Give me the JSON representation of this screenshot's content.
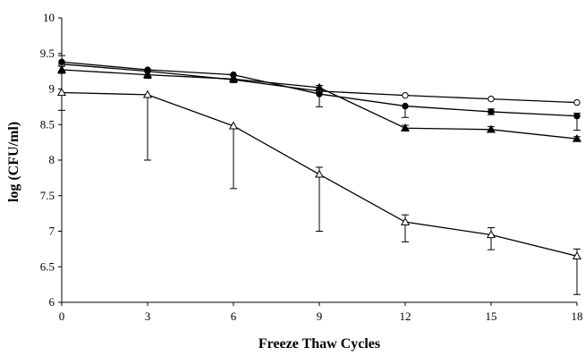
{
  "chart_data": {
    "type": "line",
    "title": "",
    "xlabel": "Freeze Thaw Cycles",
    "ylabel": "log (CFU/ml)",
    "x": [
      0,
      3,
      6,
      9,
      12,
      15,
      18
    ],
    "xticks": [
      "0",
      "3",
      "6",
      "9",
      "12",
      "15",
      "18"
    ],
    "yticks": [
      "6",
      "6.5",
      "7",
      "7.5",
      "8",
      "8.5",
      "9",
      "9.5",
      "10"
    ],
    "xlim": [
      0,
      18
    ],
    "ylim": [
      6,
      10
    ],
    "grid": false,
    "legend": "none",
    "series": [
      {
        "marker": "open-circle",
        "values": [
          9.35,
          9.25,
          9.13,
          8.97,
          8.91,
          8.86,
          8.81
        ],
        "err_upper": [
          0,
          0,
          0,
          0,
          0,
          0,
          0
        ],
        "err_lower": [
          0,
          0,
          0,
          0,
          0,
          0,
          0
        ]
      },
      {
        "marker": "filled-circle",
        "values": [
          9.38,
          9.27,
          9.2,
          8.93,
          8.76,
          8.68,
          8.62
        ],
        "err_upper": [
          0.09,
          0,
          0,
          0.03,
          0,
          0.04,
          0.04
        ],
        "err_lower": [
          0,
          0,
          0,
          0.18,
          0.16,
          0.04,
          0.2
        ]
      },
      {
        "marker": "filled-triangle",
        "values": [
          9.27,
          9.2,
          9.14,
          9.02,
          8.45,
          8.43,
          8.3
        ],
        "err_upper": [
          0.05,
          0.05,
          0.05,
          0.03,
          0.04,
          0.04,
          0.03
        ],
        "err_lower": [
          0.05,
          0.05,
          0.05,
          0.03,
          0.04,
          0.04,
          0.03
        ]
      },
      {
        "marker": "open-triangle",
        "values": [
          8.95,
          8.92,
          8.48,
          7.8,
          7.13,
          6.95,
          6.65
        ],
        "err_upper": [
          0,
          0,
          0,
          0.1,
          0.1,
          0.1,
          0.1
        ],
        "err_lower": [
          0.25,
          0.92,
          0.88,
          0.8,
          0.28,
          0.21,
          0.54
        ]
      }
    ]
  }
}
